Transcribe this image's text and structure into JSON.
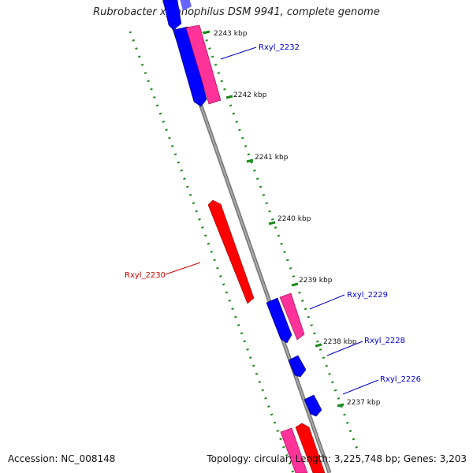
{
  "title": "Rubrobacter xylanophilus DSM 9941, complete genome",
  "footer": {
    "accession": "Accession: NC_008148",
    "summary": "Topology: circular; Length: 3,225,748 bp; Genes: 3,203"
  },
  "ticks": [
    "2243 kbp",
    "2242 kbp",
    "2241 kbp",
    "2240 kbp",
    "2239 kbp",
    "2238 kbp",
    "2237 kbp"
  ],
  "genes": [
    {
      "id": "Rxyl_2232",
      "color": "#0000cc"
    },
    {
      "id": "Rxyl_2230",
      "color": "#cc0000"
    },
    {
      "id": "Rxyl_2229",
      "color": "#0000cc"
    },
    {
      "id": "Rxyl_2228",
      "color": "#0000cc"
    },
    {
      "id": "Rxyl_2226",
      "color": "#0000cc"
    }
  ],
  "colors": {
    "forward": "#0000ff",
    "reverse": "#ff0000",
    "pink": "#ff3399",
    "backbone": "#888888",
    "dotted_track": "#1a8a1a"
  }
}
